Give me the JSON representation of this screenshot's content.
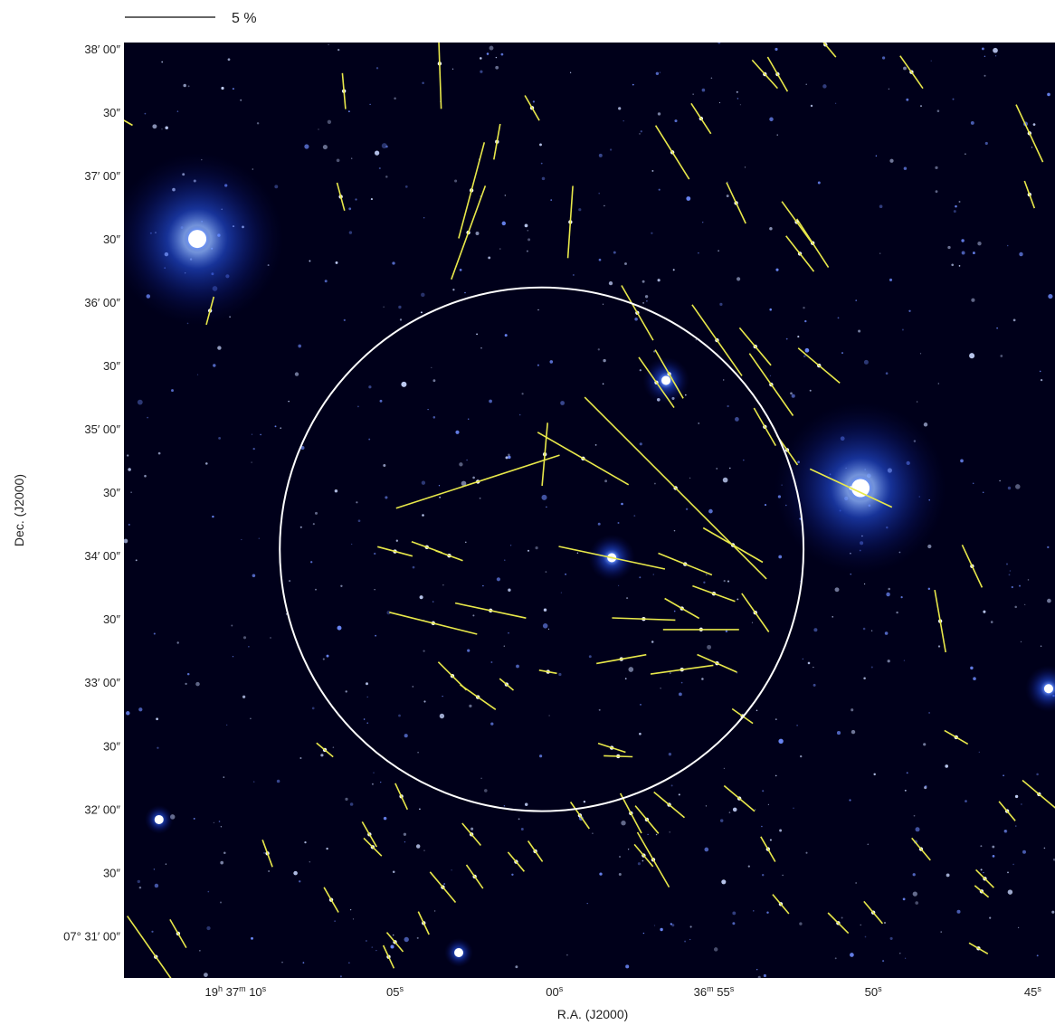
{
  "chart_data": {
    "type": "scatter",
    "subtype": "polarization vector map over a blue-scale sky image",
    "title": "",
    "xlabel": "R.A. (J2000)",
    "ylabel": "Dec. (J2000)",
    "x_ticks": [
      {
        "label": "19h 37m 10s",
        "parts": [
          "19",
          "h",
          " 37",
          "m",
          " 10",
          "s"
        ],
        "ra_s": 10
      },
      {
        "label": "05s",
        "parts": [
          "05",
          "s"
        ],
        "ra_s": 5
      },
      {
        "label": "00s",
        "parts": [
          "00",
          "s"
        ],
        "ra_s": 0
      },
      {
        "label": "36m 55s",
        "parts": [
          "36",
          "m",
          " 55",
          "s"
        ],
        "ra_s": -5
      },
      {
        "label": "50s",
        "parts": [
          "50",
          "s"
        ],
        "ra_s": -10
      },
      {
        "label": "45s",
        "parts": [
          "45",
          "s"
        ],
        "ra_s": -15
      }
    ],
    "y_ticks": [
      {
        "label": "38′ 00″",
        "dec_arcsec": 420
      },
      {
        "label": "30″",
        "dec_arcsec": 390
      },
      {
        "label": "37′ 00″",
        "dec_arcsec": 360
      },
      {
        "label": "30″",
        "dec_arcsec": 330
      },
      {
        "label": "36′ 00″",
        "dec_arcsec": 300
      },
      {
        "label": "30″",
        "dec_arcsec": 270
      },
      {
        "label": "35′ 00″",
        "dec_arcsec": 240
      },
      {
        "label": "30″",
        "dec_arcsec": 210
      },
      {
        "label": "34′ 00″",
        "dec_arcsec": 180
      },
      {
        "label": "30″",
        "dec_arcsec": 150
      },
      {
        "label": "33′ 00″",
        "dec_arcsec": 120
      },
      {
        "label": "30″",
        "dec_arcsec": 90
      },
      {
        "label": "32′ 00″",
        "dec_arcsec": 60
      },
      {
        "label": "30″",
        "dec_arcsec": 30
      },
      {
        "label": "07° 31′ 00″",
        "dec_arcsec": 0
      }
    ],
    "x_range_ra_s": [
      13.5,
      -15.7
    ],
    "y_range_dec_arcsec": [
      -20,
      423
    ],
    "dec_reference": "+07° 31′ 00″",
    "ra_reference": "19h 37m 00s",
    "scale_bar": {
      "label": "5 %",
      "percent": 5
    },
    "colors": {
      "background": "#00001a",
      "star": "#dfe9ff",
      "halo": "#2a5cff",
      "vector": "#e8e84a",
      "circle": "#ffffff"
    },
    "region_circle": {
      "center": {
        "ra_s": 0.4,
        "dec_arcsec": 183
      },
      "radius_arcsec": 124
    },
    "bright_stars": [
      {
        "ra_s": 11.2,
        "dec_arcsec": 330,
        "brightness": 3
      },
      {
        "ra_s": -9.6,
        "dec_arcsec": 212,
        "brightness": 3
      },
      {
        "ra_s": -15.5,
        "dec_arcsec": 117,
        "brightness": 2
      },
      {
        "ra_s": -3.5,
        "dec_arcsec": 263,
        "brightness": 2
      },
      {
        "ra_s": -1.8,
        "dec_arcsec": 179,
        "brightness": 2
      },
      {
        "ra_s": 12.4,
        "dec_arcsec": 55,
        "brightness": 1.5
      },
      {
        "ra_s": 3.0,
        "dec_arcsec": -8,
        "brightness": 1.5
      }
    ],
    "vectors": [
      {
        "ra_s": -1.8,
        "dec_arcsec": 179,
        "p": 6.0,
        "pa": 78
      },
      {
        "ra_s": 2.4,
        "dec_arcsec": 215,
        "p": 9.5,
        "pa": 108
      },
      {
        "ra_s": -3.8,
        "dec_arcsec": 212,
        "p": 14.2,
        "pa": 45
      },
      {
        "ra_s": -0.9,
        "dec_arcsec": 226,
        "p": 5.8,
        "pa": 60
      },
      {
        "ra_s": 0.3,
        "dec_arcsec": 228,
        "p": 3.5,
        "pa": 175
      },
      {
        "ra_s": 3.8,
        "dec_arcsec": 148,
        "p": 5.0,
        "pa": 76
      },
      {
        "ra_s": -5.6,
        "dec_arcsec": 185,
        "p": 3.8,
        "pa": 60
      },
      {
        "ra_s": -4.1,
        "dec_arcsec": 176,
        "p": 3.2,
        "pa": 68
      },
      {
        "ra_s": -4.6,
        "dec_arcsec": 145,
        "p": 4.2,
        "pa": 90
      },
      {
        "ra_s": -4.0,
        "dec_arcsec": 126,
        "p": 3.5,
        "pa": 98
      },
      {
        "ra_s": -5.1,
        "dec_arcsec": 129,
        "p": 2.4,
        "pa": 66
      },
      {
        "ra_s": -5.0,
        "dec_arcsec": 162,
        "p": 2.5,
        "pa": 70
      },
      {
        "ra_s": -6.3,
        "dec_arcsec": 153,
        "p": 2.6,
        "pa": 35
      },
      {
        "ra_s": -3.6,
        "dec_arcsec": 266,
        "p": 3.1,
        "pa": 30
      },
      {
        "ra_s": -3.2,
        "dec_arcsec": 262,
        "p": 3.4,
        "pa": 35
      },
      {
        "ra_s": -5.1,
        "dec_arcsec": 282,
        "p": 4.8,
        "pa": 35
      },
      {
        "ra_s": -2.6,
        "dec_arcsec": 295,
        "p": 3.5,
        "pa": 30
      },
      {
        "ra_s": -6.8,
        "dec_arcsec": 261,
        "p": 4.2,
        "pa": 35
      },
      {
        "ra_s": -6.3,
        "dec_arcsec": 279,
        "p": 2.7,
        "pa": 40
      },
      {
        "ra_s": -8.3,
        "dec_arcsec": 270,
        "p": 3.0,
        "pa": 50
      },
      {
        "ra_s": -6.6,
        "dec_arcsec": 241,
        "p": 2.4,
        "pa": 30
      },
      {
        "ra_s": -9.3,
        "dec_arcsec": 212,
        "p": 5.0,
        "pa": 65
      },
      {
        "ra_s": -7.3,
        "dec_arcsec": 230,
        "p": 2.0,
        "pa": 35
      },
      {
        "ra_s": -8.1,
        "dec_arcsec": 328,
        "p": 3.2,
        "pa": 33
      },
      {
        "ra_s": -7.7,
        "dec_arcsec": 323,
        "p": 2.5,
        "pa": 38
      },
      {
        "ra_s": -7.6,
        "dec_arcsec": 338,
        "p": 2.8,
        "pa": 36
      },
      {
        "ra_s": 5.0,
        "dec_arcsec": 182,
        "p": 2.0,
        "pa": 75
      },
      {
        "ra_s": 4.0,
        "dec_arcsec": 184,
        "p": 1.8,
        "pa": 70
      },
      {
        "ra_s": 3.3,
        "dec_arcsec": 180,
        "p": 1.6,
        "pa": 70
      },
      {
        "ra_s": 2.0,
        "dec_arcsec": 154,
        "p": 4.0,
        "pa": 78
      },
      {
        "ra_s": 3.2,
        "dec_arcsec": 123,
        "p": 2.2,
        "pa": 45
      },
      {
        "ra_s": 2.4,
        "dec_arcsec": 113,
        "p": 2.4,
        "pa": 55
      },
      {
        "ra_s": -2.8,
        "dec_arcsec": 150,
        "p": 3.5,
        "pa": 88
      },
      {
        "ra_s": -2.1,
        "dec_arcsec": 131,
        "p": 2.8,
        "pa": 100
      },
      {
        "ra_s": -4.0,
        "dec_arcsec": 155,
        "p": 2.2,
        "pa": 60
      },
      {
        "ra_s": -1.8,
        "dec_arcsec": 89,
        "p": 1.6,
        "pa": 72
      },
      {
        "ra_s": -2.0,
        "dec_arcsec": 85,
        "p": 1.6,
        "pa": 88
      },
      {
        "ra_s": -2.9,
        "dec_arcsec": 55,
        "p": 2.0,
        "pa": 40
      },
      {
        "ra_s": -3.6,
        "dec_arcsec": 62,
        "p": 2.2,
        "pa": 50
      },
      {
        "ra_s": -2.4,
        "dec_arcsec": 58,
        "p": 2.5,
        "pa": 28
      },
      {
        "ra_s": -3.1,
        "dec_arcsec": 36,
        "p": 3.5,
        "pa": 30
      },
      {
        "ra_s": -5.8,
        "dec_arcsec": 65,
        "p": 2.2,
        "pa": 50
      },
      {
        "ra_s": 3.6,
        "dec_arcsec": 413,
        "p": 5.0,
        "pa": 2
      },
      {
        "ra_s": 6.6,
        "dec_arcsec": 400,
        "p": 2.0,
        "pa": 5
      },
      {
        "ra_s": 1.8,
        "dec_arcsec": 376,
        "p": 2.0,
        "pa": 170
      },
      {
        "ra_s": 0.7,
        "dec_arcsec": 392,
        "p": 1.6,
        "pa": 30
      },
      {
        "ra_s": 2.6,
        "dec_arcsec": 353,
        "p": 5.5,
        "pa": 165
      },
      {
        "ra_s": 2.7,
        "dec_arcsec": 333,
        "p": 5.5,
        "pa": 160
      },
      {
        "ra_s": -0.5,
        "dec_arcsec": 338,
        "p": 4.0,
        "pa": 176
      },
      {
        "ra_s": -3.7,
        "dec_arcsec": 371,
        "p": 3.5,
        "pa": 32
      },
      {
        "ra_s": -4.6,
        "dec_arcsec": 387,
        "p": 2.0,
        "pa": 33
      },
      {
        "ra_s": -5.7,
        "dec_arcsec": 347,
        "p": 2.5,
        "pa": 25
      },
      {
        "ra_s": -6.6,
        "dec_arcsec": 408,
        "p": 2.1,
        "pa": 42
      },
      {
        "ra_s": -7.0,
        "dec_arcsec": 408,
        "p": 2.2,
        "pa": 30
      },
      {
        "ra_s": -8.5,
        "dec_arcsec": 422,
        "p": 1.8,
        "pa": 40
      },
      {
        "ra_s": -11.2,
        "dec_arcsec": 409,
        "p": 2.2,
        "pa": 35
      },
      {
        "ra_s": -14.9,
        "dec_arcsec": 380,
        "p": 3.5,
        "pa": 25
      },
      {
        "ra_s": -14.9,
        "dec_arcsec": 351,
        "p": 1.6,
        "pa": 20
      },
      {
        "ra_s": 6.7,
        "dec_arcsec": 350,
        "p": 1.6,
        "pa": 15
      },
      {
        "ra_s": 10.8,
        "dec_arcsec": 296,
        "p": 1.6,
        "pa": 165
      },
      {
        "ra_s": 14.2,
        "dec_arcsec": 232,
        "p": 1.2,
        "pa": 55
      },
      {
        "ra_s": 13.6,
        "dec_arcsec": 387,
        "p": 1.5,
        "pa": 60
      },
      {
        "ra_s": 0.2,
        "dec_arcsec": 125,
        "p": 1.0,
        "pa": 80
      },
      {
        "ra_s": 1.5,
        "dec_arcsec": 119,
        "p": 1.0,
        "pa": 50
      },
      {
        "ra_s": -5.9,
        "dec_arcsec": 104,
        "p": 1.4,
        "pa": 55
      },
      {
        "ra_s": -12.1,
        "dec_arcsec": 149,
        "p": 3.5,
        "pa": 10
      },
      {
        "ra_s": -13.1,
        "dec_arcsec": 175,
        "p": 2.6,
        "pa": 25
      },
      {
        "ra_s": -12.6,
        "dec_arcsec": 94,
        "p": 1.5,
        "pa": 60
      },
      {
        "ra_s": -15.2,
        "dec_arcsec": 67,
        "p": 2.4,
        "pa": 50
      },
      {
        "ra_s": -14.2,
        "dec_arcsec": 59,
        "p": 1.4,
        "pa": 40
      },
      {
        "ra_s": -11.5,
        "dec_arcsec": 41,
        "p": 1.6,
        "pa": 40
      },
      {
        "ra_s": -13.5,
        "dec_arcsec": 27,
        "p": 1.4,
        "pa": 45
      },
      {
        "ra_s": -13.4,
        "dec_arcsec": 21,
        "p": 1.0,
        "pa": 50
      },
      {
        "ra_s": -6.7,
        "dec_arcsec": 41,
        "p": 1.6,
        "pa": 30
      },
      {
        "ra_s": -10.0,
        "dec_arcsec": 11,
        "p": 1.6,
        "pa": 40
      },
      {
        "ra_s": -8.9,
        "dec_arcsec": 6,
        "p": 1.6,
        "pa": 45
      },
      {
        "ra_s": -13.3,
        "dec_arcsec": -6,
        "p": 1.2,
        "pa": 60
      },
      {
        "ra_s": -0.8,
        "dec_arcsec": 57,
        "p": 1.8,
        "pa": 35
      },
      {
        "ra_s": 9.0,
        "dec_arcsec": 39,
        "p": 1.6,
        "pa": 20
      },
      {
        "ra_s": 5.8,
        "dec_arcsec": 48,
        "p": 1.6,
        "pa": 30
      },
      {
        "ra_s": 4.8,
        "dec_arcsec": 66,
        "p": 1.6,
        "pa": 25
      },
      {
        "ra_s": 7.2,
        "dec_arcsec": 88,
        "p": 1.2,
        "pa": 50
      },
      {
        "ra_s": 5.7,
        "dec_arcsec": 42,
        "p": 1.4,
        "pa": 45
      },
      {
        "ra_s": 3.5,
        "dec_arcsec": 23,
        "p": 2.2,
        "pa": 40
      },
      {
        "ra_s": 2.5,
        "dec_arcsec": 28,
        "p": 1.6,
        "pa": 35
      },
      {
        "ra_s": 2.6,
        "dec_arcsec": 48,
        "p": 1.6,
        "pa": 40
      },
      {
        "ra_s": 4.1,
        "dec_arcsec": 6,
        "p": 1.4,
        "pa": 25
      },
      {
        "ra_s": 5.0,
        "dec_arcsec": -3,
        "p": 1.4,
        "pa": 40
      },
      {
        "ra_s": 5.2,
        "dec_arcsec": -10,
        "p": 1.4,
        "pa": 25
      },
      {
        "ra_s": 11.8,
        "dec_arcsec": 1,
        "p": 1.8,
        "pa": 30
      },
      {
        "ra_s": 12.5,
        "dec_arcsec": -10,
        "p": 5.5,
        "pa": 35
      },
      {
        "ra_s": 1.2,
        "dec_arcsec": 35,
        "p": 1.4,
        "pa": 40
      },
      {
        "ra_s": 0.6,
        "dec_arcsec": 40,
        "p": 1.4,
        "pa": 35
      },
      {
        "ra_s": -2.8,
        "dec_arcsec": 38,
        "p": 1.6,
        "pa": 40
      },
      {
        "ra_s": -7.1,
        "dec_arcsec": 15,
        "p": 1.4,
        "pa": 40
      },
      {
        "ra_s": 7.0,
        "dec_arcsec": 17,
        "p": 1.6,
        "pa": 30
      }
    ]
  }
}
